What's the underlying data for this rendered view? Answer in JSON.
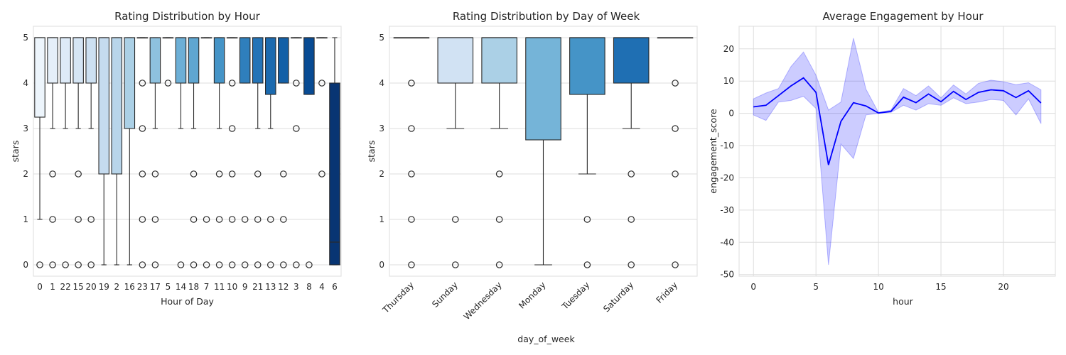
{
  "chart_data": [
    {
      "type": "box",
      "title": "Rating Distribution by Hour",
      "xlabel": "Hour of Day",
      "ylabel": "stars",
      "ylim": [
        -0.25,
        5.25
      ],
      "yticks": [
        0,
        1,
        2,
        3,
        4,
        5
      ],
      "grid": "y",
      "palette": "Blues",
      "categories": [
        "0",
        "1",
        "22",
        "15",
        "20",
        "19",
        "2",
        "16",
        "23",
        "17",
        "5",
        "14",
        "18",
        "7",
        "11",
        "10",
        "9",
        "21",
        "13",
        "12",
        "3",
        "8",
        "4",
        "6"
      ],
      "boxes": [
        {
          "category": "0",
          "q1": 3.25,
          "median": 5,
          "q3": 5,
          "whislo": 1,
          "whishi": 5,
          "fliers": [
            0
          ]
        },
        {
          "category": "1",
          "q1": 4,
          "median": 5,
          "q3": 5,
          "whislo": 3,
          "whishi": 5,
          "fliers": [
            0,
            1,
            2
          ]
        },
        {
          "category": "22",
          "q1": 4,
          "median": 5,
          "q3": 5,
          "whislo": 3,
          "whishi": 5,
          "fliers": [
            0
          ]
        },
        {
          "category": "15",
          "q1": 4,
          "median": 5,
          "q3": 5,
          "whislo": 3,
          "whishi": 5,
          "fliers": [
            0,
            1,
            2
          ]
        },
        {
          "category": "20",
          "q1": 4,
          "median": 5,
          "q3": 5,
          "whislo": 3,
          "whishi": 5,
          "fliers": [
            0,
            1
          ]
        },
        {
          "category": "19",
          "q1": 2,
          "median": 5,
          "q3": 5,
          "whislo": 0,
          "whishi": 5,
          "fliers": []
        },
        {
          "category": "2",
          "q1": 2,
          "median": 5,
          "q3": 5,
          "whislo": 0,
          "whishi": 5,
          "fliers": []
        },
        {
          "category": "16",
          "q1": 3,
          "median": 5,
          "q3": 5,
          "whislo": 0,
          "whishi": 5,
          "fliers": []
        },
        {
          "category": "23",
          "q1": 5,
          "median": 5,
          "q3": 5,
          "whislo": 5,
          "whishi": 5,
          "fliers": [
            0,
            1,
            2,
            3,
            4
          ]
        },
        {
          "category": "17",
          "q1": 4,
          "median": 5,
          "q3": 5,
          "whislo": 3,
          "whishi": 5,
          "fliers": [
            0,
            1,
            2
          ]
        },
        {
          "category": "5",
          "q1": 5,
          "median": 5,
          "q3": 5,
          "whislo": 5,
          "whishi": 5,
          "fliers": [
            4
          ]
        },
        {
          "category": "14",
          "q1": 4,
          "median": 5,
          "q3": 5,
          "whislo": 3,
          "whishi": 5,
          "fliers": [
            0
          ]
        },
        {
          "category": "18",
          "q1": 4,
          "median": 5,
          "q3": 5,
          "whislo": 3,
          "whishi": 5,
          "fliers": [
            0,
            1,
            2
          ]
        },
        {
          "category": "7",
          "q1": 5,
          "median": 5,
          "q3": 5,
          "whislo": 5,
          "whishi": 5,
          "fliers": [
            0,
            1
          ]
        },
        {
          "category": "11",
          "q1": 4,
          "median": 5,
          "q3": 5,
          "whislo": 3,
          "whishi": 5,
          "fliers": [
            0,
            1,
            2
          ]
        },
        {
          "category": "10",
          "q1": 5,
          "median": 5,
          "q3": 5,
          "whislo": 5,
          "whishi": 5,
          "fliers": [
            0,
            1,
            2,
            3,
            4
          ]
        },
        {
          "category": "9",
          "q1": 4,
          "median": 5,
          "q3": 5,
          "whislo": 4,
          "whishi": 5,
          "fliers": [
            0,
            1
          ]
        },
        {
          "category": "21",
          "q1": 4,
          "median": 5,
          "q3": 5,
          "whislo": 3,
          "whishi": 5,
          "fliers": [
            0,
            1,
            2
          ]
        },
        {
          "category": "13",
          "q1": 3.75,
          "median": 5,
          "q3": 5,
          "whislo": 3,
          "whishi": 5,
          "fliers": [
            0,
            1
          ]
        },
        {
          "category": "12",
          "q1": 4,
          "median": 5,
          "q3": 5,
          "whislo": 4,
          "whishi": 5,
          "fliers": [
            0,
            1,
            2
          ]
        },
        {
          "category": "3",
          "q1": 5,
          "median": 5,
          "q3": 5,
          "whislo": 5,
          "whishi": 5,
          "fliers": [
            0,
            3,
            4
          ]
        },
        {
          "category": "8",
          "q1": 3.75,
          "median": 5,
          "q3": 5,
          "whislo": 3.75,
          "whishi": 5,
          "fliers": [
            0
          ]
        },
        {
          "category": "4",
          "q1": 5,
          "median": 5,
          "q3": 5,
          "whislo": 5,
          "whishi": 5,
          "fliers": [
            2,
            4
          ]
        },
        {
          "category": "6",
          "q1": 0,
          "median": 0.5,
          "q3": 4,
          "whislo": 0,
          "whishi": 5,
          "fliers": []
        }
      ]
    },
    {
      "type": "box",
      "title": "Rating Distribution by Day of Week",
      "xlabel": "day_of_week",
      "ylabel": "stars",
      "ylim": [
        -0.25,
        5.25
      ],
      "yticks": [
        0,
        1,
        2,
        3,
        4,
        5
      ],
      "grid": "y",
      "palette": "Blues",
      "categories": [
        "Thursday",
        "Sunday",
        "Wednesday",
        "Monday",
        "Tuesday",
        "Saturday",
        "Friday"
      ],
      "boxes": [
        {
          "category": "Thursday",
          "q1": 5,
          "median": 5,
          "q3": 5,
          "whislo": 5,
          "whishi": 5,
          "fliers": [
            0,
            1,
            2,
            3,
            4
          ]
        },
        {
          "category": "Sunday",
          "q1": 4,
          "median": 5,
          "q3": 5,
          "whislo": 3,
          "whishi": 5,
          "fliers": [
            0,
            1
          ]
        },
        {
          "category": "Wednesday",
          "q1": 4,
          "median": 5,
          "q3": 5,
          "whislo": 3,
          "whishi": 5,
          "fliers": [
            0,
            1,
            2
          ]
        },
        {
          "category": "Monday",
          "q1": 2.75,
          "median": 5,
          "q3": 5,
          "whislo": 0,
          "whishi": 5,
          "fliers": []
        },
        {
          "category": "Tuesday",
          "q1": 3.75,
          "median": 5,
          "q3": 5,
          "whislo": 2,
          "whishi": 5,
          "fliers": [
            0,
            1
          ]
        },
        {
          "category": "Saturday",
          "q1": 4,
          "median": 5,
          "q3": 5,
          "whislo": 3,
          "whishi": 5,
          "fliers": [
            0,
            1,
            2
          ]
        },
        {
          "category": "Friday",
          "q1": 5,
          "median": 5,
          "q3": 5,
          "whislo": 5,
          "whishi": 5,
          "fliers": [
            0,
            2,
            3,
            4
          ]
        }
      ]
    },
    {
      "type": "line",
      "title": "Average Engagement by Hour",
      "xlabel": "hour",
      "ylabel": "engagement_score",
      "xlim": [
        -1.15,
        24.15
      ],
      "ylim": [
        -50.5,
        27
      ],
      "xticks": [
        0,
        5,
        10,
        15,
        20
      ],
      "yticks": [
        -50,
        -40,
        -30,
        -20,
        -10,
        0,
        10,
        20
      ],
      "grid": "both",
      "line_color": "#0000ff",
      "band_color": "#0000ff",
      "series": [
        {
          "x": [
            0,
            1,
            2,
            3,
            4,
            5,
            6,
            7,
            8,
            9,
            10,
            11,
            12,
            13,
            14,
            15,
            16,
            17,
            18,
            19,
            20,
            21,
            22,
            23
          ],
          "y": [
            2,
            2.5,
            5.5,
            8.5,
            11,
            6.5,
            -16,
            -2.5,
            3.3,
            2.3,
            0.1,
            0.6,
            5,
            3.3,
            6,
            3.6,
            6.8,
            4.3,
            6.5,
            7.3,
            7,
            4.9,
            7,
            3.2
          ],
          "ci_low": [
            -0.5,
            -2.2,
            3.5,
            4,
            5.3,
            1.5,
            -47,
            -9.5,
            -14,
            -0.5,
            0,
            0.3,
            2.5,
            1,
            3,
            2.5,
            4.8,
            3,
            3.5,
            4.3,
            4,
            -0.5,
            4.5,
            -3.2
          ],
          "ci_high": [
            4.5,
            6.3,
            7.7,
            14.5,
            19,
            11.8,
            1,
            3.5,
            23.3,
            7.5,
            0.3,
            1,
            7.7,
            5.5,
            8.5,
            4.8,
            8.8,
            6,
            9.3,
            10.3,
            9.8,
            8.9,
            9.5,
            7.3
          ]
        }
      ]
    }
  ]
}
